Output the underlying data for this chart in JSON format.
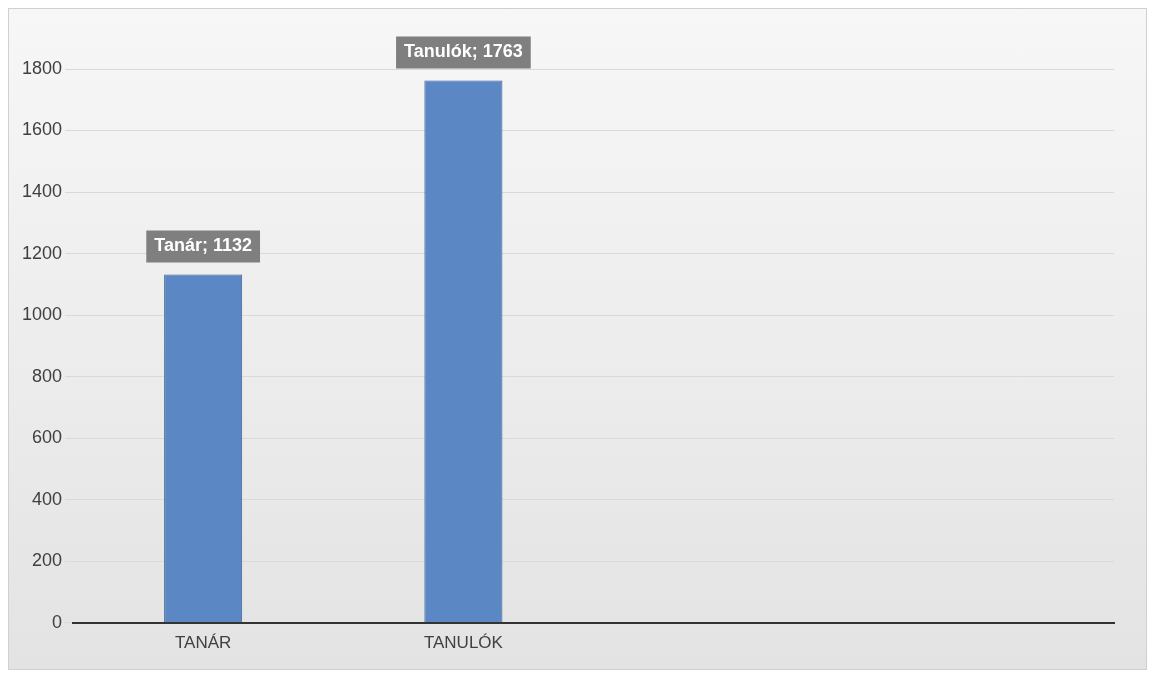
{
  "chart_data": {
    "type": "bar",
    "categories": [
      "TANÁR",
      "TANULÓK",
      null,
      null
    ],
    "values": [
      1132,
      1763,
      null,
      null
    ],
    "value_labels": [
      "Tanár; 1132",
      "Tanulók; 1763",
      null,
      null
    ],
    "color": "#5b87c5",
    "ylim": [
      0,
      1800
    ],
    "yticks": [
      0,
      200,
      400,
      600,
      800,
      1000,
      1200,
      1400,
      1600,
      1800
    ],
    "grid": "y",
    "legend": false
  }
}
